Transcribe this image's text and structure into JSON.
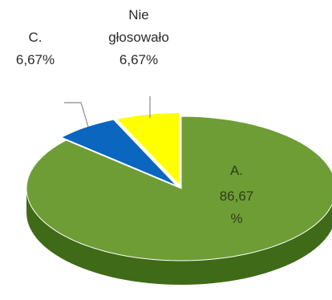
{
  "chart_data": {
    "type": "pie",
    "style": "3d-exploded",
    "slices": [
      {
        "name": "A.",
        "value": 86.67,
        "label_lines": [
          "A.",
          "86,67",
          "%"
        ],
        "color": "#6e9d35",
        "color_side": "#3f6a17"
      },
      {
        "name": "C.",
        "value": 6.67,
        "label_lines": [
          "C.",
          "6,67%"
        ],
        "color": "#0a66bf",
        "color_side": "#084a8a"
      },
      {
        "name": "Nie głosowało",
        "value": 6.67,
        "label_lines": [
          "Nie",
          "głosowało",
          "6,67%"
        ],
        "color": "#ffff00",
        "color_side": "#b5b500"
      }
    ],
    "leader_line_color": "#7f7f7f"
  }
}
